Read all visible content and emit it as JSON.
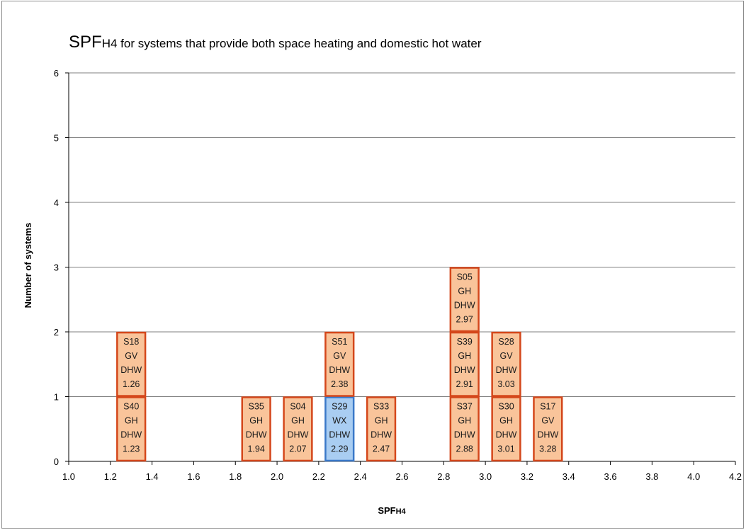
{
  "chart_data": {
    "type": "stacked-box-histogram",
    "title_prefix": "SPF",
    "title_subscript": "H4",
    "title_rest": " for systems that provide both space heating and domestic hot water",
    "xlabel_main": "SPF",
    "xlabel_sub": "H4",
    "ylabel": "Number of systems",
    "xlim": [
      1.0,
      4.2
    ],
    "ylim": [
      0,
      6
    ],
    "x_ticks": [
      "1.0",
      "1.2",
      "1.4",
      "1.6",
      "1.8",
      "2.0",
      "2.2",
      "2.4",
      "2.6",
      "2.8",
      "3.0",
      "3.2",
      "3.4",
      "3.6",
      "3.8",
      "4.0",
      "4.2"
    ],
    "y_ticks": [
      "0",
      "1",
      "2",
      "3",
      "4",
      "5",
      "6"
    ],
    "grid": "horizontal",
    "colors": {
      "box_fill": "#f9c49a",
      "box_border": "#d4471b",
      "highlight_fill": "#a9cdf2",
      "highlight_border": "#3a78c8",
      "grid": "#7f7f7f"
    },
    "bin_width": 0.2,
    "systems": [
      {
        "id": "S40",
        "type": "GH",
        "use": "DHW",
        "spf": "1.23",
        "bin_start": 1.2,
        "level": 0,
        "highlight": false
      },
      {
        "id": "S18",
        "type": "GV",
        "use": "DHW",
        "spf": "1.26",
        "bin_start": 1.2,
        "level": 1,
        "highlight": false
      },
      {
        "id": "S35",
        "type": "GH",
        "use": "DHW",
        "spf": "1.94",
        "bin_start": 1.8,
        "level": 0,
        "highlight": false
      },
      {
        "id": "S04",
        "type": "GH",
        "use": "DHW",
        "spf": "2.07",
        "bin_start": 2.0,
        "level": 0,
        "highlight": false
      },
      {
        "id": "S29",
        "type": "WX",
        "use": "DHW",
        "spf": "2.29",
        "bin_start": 2.2,
        "level": 0,
        "highlight": true
      },
      {
        "id": "S51",
        "type": "GV",
        "use": "DHW",
        "spf": "2.38",
        "bin_start": 2.2,
        "level": 1,
        "highlight": false
      },
      {
        "id": "S33",
        "type": "GH",
        "use": "DHW",
        "spf": "2.47",
        "bin_start": 2.4,
        "level": 0,
        "highlight": false
      },
      {
        "id": "S37",
        "type": "GH",
        "use": "DHW",
        "spf": "2.88",
        "bin_start": 2.8,
        "level": 0,
        "highlight": false
      },
      {
        "id": "S39",
        "type": "GH",
        "use": "DHW",
        "spf": "2.91",
        "bin_start": 2.8,
        "level": 1,
        "highlight": false
      },
      {
        "id": "S05",
        "type": "GH",
        "use": "DHW",
        "spf": "2.97",
        "bin_start": 2.8,
        "level": 2,
        "highlight": false
      },
      {
        "id": "S30",
        "type": "GH",
        "use": "DHW",
        "spf": "3.01",
        "bin_start": 3.0,
        "level": 0,
        "highlight": false
      },
      {
        "id": "S28",
        "type": "GV",
        "use": "DHW",
        "spf": "3.03",
        "bin_start": 3.0,
        "level": 1,
        "highlight": false
      },
      {
        "id": "S17",
        "type": "GV",
        "use": "DHW",
        "spf": "3.28",
        "bin_start": 3.2,
        "level": 0,
        "highlight": false
      }
    ]
  }
}
